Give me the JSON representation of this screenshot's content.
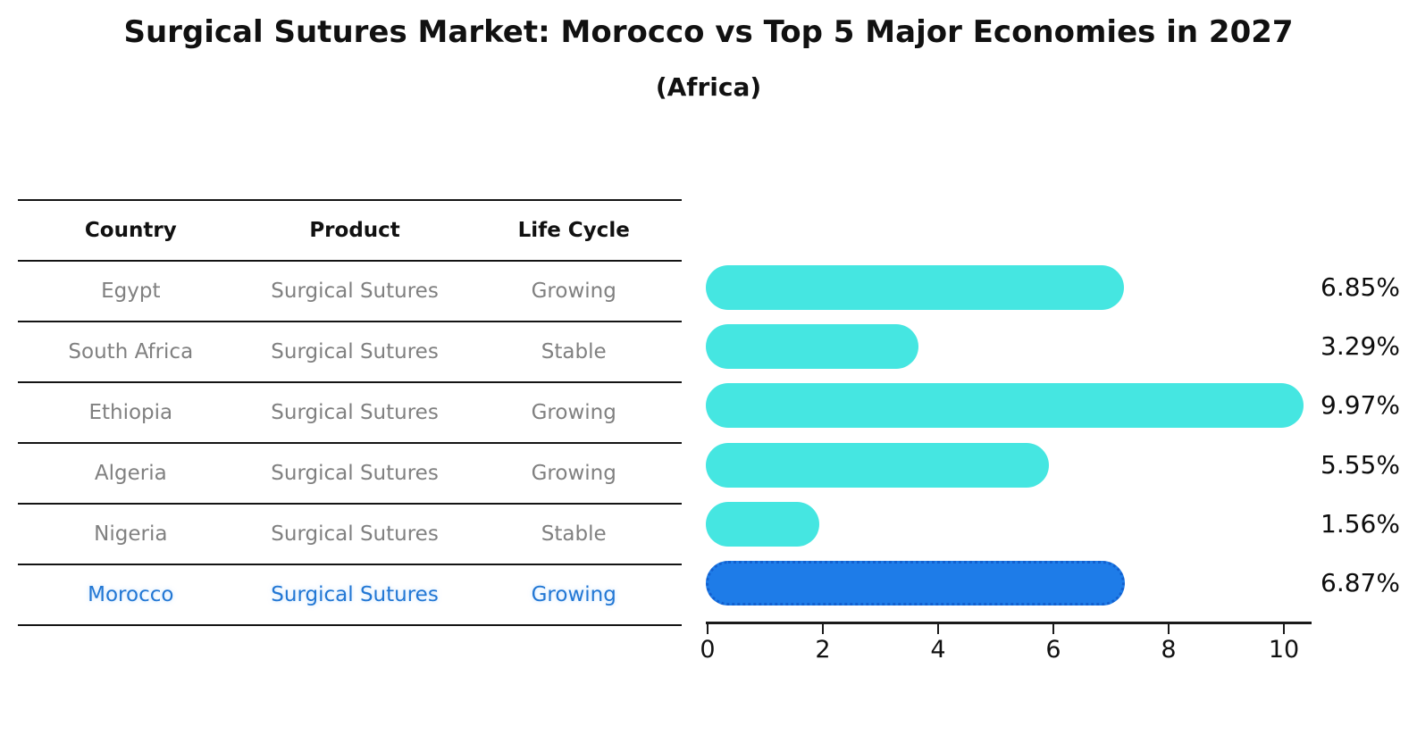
{
  "title": "Surgical Sutures Market: Morocco vs Top 5 Major Economies in 2027",
  "subtitle": "(Africa)",
  "table": {
    "headers": [
      "Country",
      "Product",
      "Life Cycle"
    ],
    "rows": [
      {
        "country": "Egypt",
        "product": "Surgical Sutures",
        "life_cycle": "Growing",
        "value": 6.85,
        "value_label": "6.85%",
        "highlight": false
      },
      {
        "country": "South Africa",
        "product": "Surgical Sutures",
        "life_cycle": "Stable",
        "value": 3.29,
        "value_label": "3.29%",
        "highlight": false
      },
      {
        "country": "Ethiopia",
        "product": "Surgical Sutures",
        "life_cycle": "Growing",
        "value": 9.97,
        "value_label": "9.97%",
        "highlight": false
      },
      {
        "country": "Algeria",
        "product": "Surgical Sutures",
        "life_cycle": "Growing",
        "value": 5.55,
        "value_label": "5.55%",
        "highlight": false
      },
      {
        "country": "Nigeria",
        "product": "Surgical Sutures",
        "life_cycle": "Stable",
        "value": 1.56,
        "value_label": "1.56%",
        "highlight": false
      },
      {
        "country": "Morocco",
        "product": "Surgical Sutures",
        "life_cycle": "Growing",
        "value": 6.87,
        "value_label": "6.87%",
        "highlight": true
      }
    ]
  },
  "chart_data": {
    "type": "bar",
    "orientation": "horizontal",
    "title": "Surgical Sutures Market: Morocco vs Top 5 Major Economies in 2027",
    "subtitle": "(Africa)",
    "categories": [
      "Egypt",
      "South Africa",
      "Ethiopia",
      "Algeria",
      "Nigeria",
      "Morocco"
    ],
    "values": [
      6.85,
      3.29,
      9.97,
      5.55,
      1.56,
      6.87
    ],
    "value_labels": [
      "6.85%",
      "3.29%",
      "9.97%",
      "5.55%",
      "1.56%",
      "6.87%"
    ],
    "xlabel": "",
    "ylabel": "",
    "xlim": [
      0,
      10.5
    ],
    "x_ticks": [
      0,
      2,
      4,
      6,
      8,
      10
    ],
    "grid": false,
    "legend": "none",
    "colors": {
      "bar_default": "#45e6e1",
      "bar_highlight": "#1e7ce8",
      "bar_highlight_edge": "#1260cf",
      "highlight_text": "#2277d4",
      "row_text": "#808080",
      "header_text": "#111111",
      "axis": "#1a1a1a"
    }
  }
}
